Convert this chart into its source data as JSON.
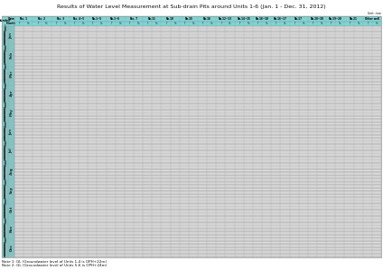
{
  "title": "Results of Water Level Measurement at Sub-drain Pits around Units 1-6 (Jan. 1 - Dec. 31, 2012)",
  "unit_label": "Unit: mm",
  "header_bg": "#7dd4d4",
  "alt_row_bg": "#d8d8d8",
  "white_row_bg": "#f0f0f0",
  "month_col_bg": "#7dd4d4",
  "grid_color": "#999999",
  "text_color": "#111111",
  "col_headers": [
    "No. 1",
    "No. 2",
    "No. 3",
    "No. 4~5",
    "No.1~5",
    "No.1~6",
    "No. 7",
    "No.11",
    "No.10",
    "No.15",
    "No.16",
    "No.12~13",
    "No.14~15",
    "No.16~18",
    "No.16~17",
    "No.17",
    "No.18~20",
    "No.19~20",
    "No.21",
    "Other well"
  ],
  "footnote1": "Note 1: GL (Groundwater level of Units 1-4 is OPH+22m)",
  "footnote2": "Note 2: GL (Groundwater level of Units 5-6 is OPH+24m)",
  "months": [
    "Jan",
    "Feb",
    "Mar",
    "Apr",
    "May",
    "Jun",
    "Jul",
    "Aug",
    "Sep",
    "Oct",
    "Nov",
    "Dec"
  ],
  "days_per_month": [
    31,
    29,
    31,
    30,
    31,
    30,
    31,
    31,
    30,
    31,
    30,
    31
  ],
  "num_data_cols": 20,
  "title_fontsize": 4.5,
  "header_fontsize": 3.0,
  "cell_fontsize": 2.3,
  "footnote_fontsize": 3.0
}
